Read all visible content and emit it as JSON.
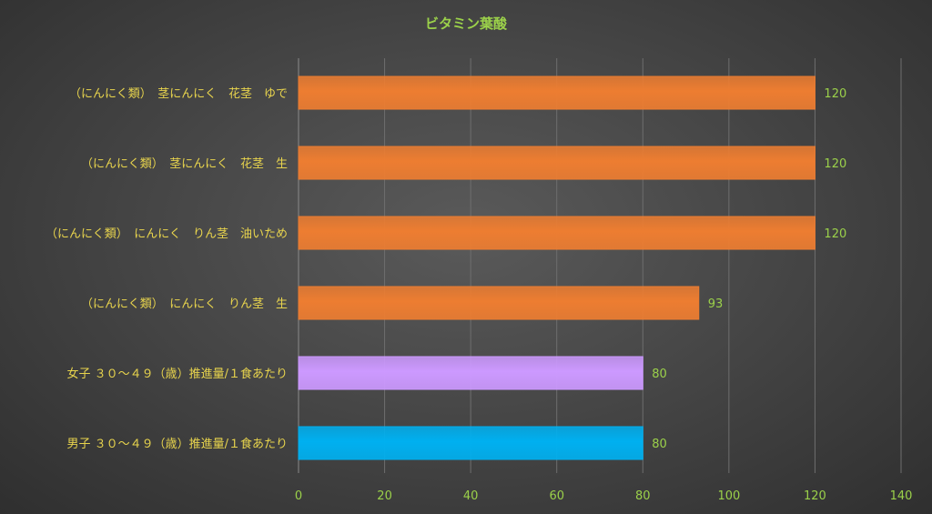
{
  "chart_data": {
    "type": "bar",
    "orientation": "horizontal",
    "title": "ビタミン葉酸",
    "categories": [
      "（にんにく類）　茎にんにく　花茎　ゆで",
      "（にんにく類）　茎にんにく　花茎　生",
      "（にんにく類）　にんにく　りん茎　油いため",
      "（にんにく類）　にんにく　りん茎　生",
      "女子 ３０～４９（歳）推進量/１食あたり",
      "男子 ３０～４９（歳）推進量/１食あたり"
    ],
    "values": [
      120,
      120,
      120,
      93,
      80,
      80
    ],
    "data_labels": [
      "120",
      "120",
      "120",
      "93",
      "80",
      "80"
    ],
    "bar_colors": [
      "#ed7d31",
      "#ed7d31",
      "#ed7d31",
      "#ed7d31",
      "#cc99ff",
      "#00b0f0"
    ],
    "xlim": [
      0,
      140
    ],
    "xticks": [
      0,
      20,
      40,
      60,
      80,
      100,
      120,
      140
    ],
    "xtick_labels": [
      "0",
      "20",
      "40",
      "60",
      "80",
      "100",
      "120",
      "140"
    ],
    "xlabel": "",
    "ylabel": "",
    "grid": "vertical",
    "legend": "none"
  },
  "colors": {
    "title": "#9bd14a",
    "category_text": "#e8d44d",
    "tick_text": "#9bd14a",
    "value_text": "#9bd14a",
    "gridline": "#6e6e6e"
  }
}
